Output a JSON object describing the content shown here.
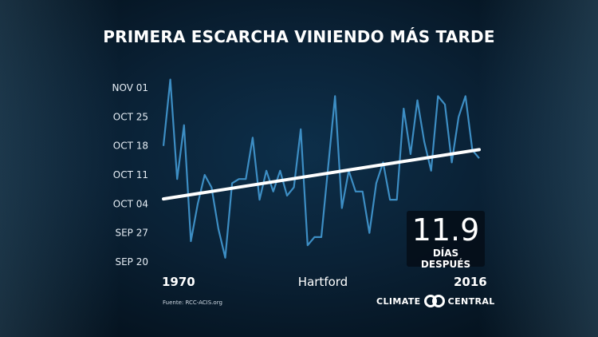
{
  "title": "PRIMERA ESCARCHA VINIENDO MÁS TARDE",
  "station": "Hartford",
  "callout": {
    "value": "11.9",
    "label": "DÍAS DESPUÉS"
  },
  "source": "Fuente: RCC-ACIS.org",
  "brand": {
    "left": "CLIMATE",
    "right": "CENTRAL"
  },
  "colors": {
    "line": "#3d8ec4",
    "trend": "#ffffff",
    "text": "#ffffff"
  },
  "chart_data": {
    "type": "line",
    "x_start": 1970,
    "x_end": 2016,
    "x_tick_labels": [
      "1970",
      "2016"
    ],
    "y_ticks": [
      {
        "label": "NOV 01",
        "day": 1
      },
      {
        "label": "OCT 25",
        "day": -6
      },
      {
        "label": "OCT 18",
        "day": -13
      },
      {
        "label": "OCT 11",
        "day": -20
      },
      {
        "label": "OCT 04",
        "day": -27
      },
      {
        "label": "SEP 27",
        "day": -34
      },
      {
        "label": "SEP 20",
        "day": -41
      }
    ],
    "ylim": [
      -41,
      1
    ],
    "series": [
      {
        "x": [
          1970,
          1971,
          1972,
          1973,
          1974,
          1975,
          1976,
          1977,
          1978,
          1979,
          1980,
          1981,
          1982,
          1983,
          1984,
          1985,
          1986,
          1987,
          1988,
          1989,
          1990,
          1991,
          1992,
          1993,
          1994,
          1995,
          1996,
          1997,
          1998,
          1999,
          2000,
          2001,
          2002,
          2003,
          2004,
          2005,
          2006,
          2007,
          2008,
          2009,
          2010,
          2011,
          2012,
          2013,
          2014,
          2015,
          2016
        ],
        "values": [
          -13,
          3,
          -21,
          -8,
          -36,
          -27,
          -20,
          -23,
          -33,
          -40,
          -22,
          -21,
          -21,
          -11,
          -26,
          -19,
          -24,
          -19,
          -25,
          -23,
          -9,
          -37,
          -35,
          -35,
          -18,
          -1,
          -28,
          -19,
          -24,
          -24,
          -34,
          -22,
          -17,
          -26,
          -26,
          -4,
          -15,
          -2,
          -12,
          -19,
          -1,
          -3,
          -17,
          -6,
          -1,
          -14,
          -16
        ]
      }
    ],
    "trend": {
      "start": -25.8,
      "end": -13.9
    }
  }
}
